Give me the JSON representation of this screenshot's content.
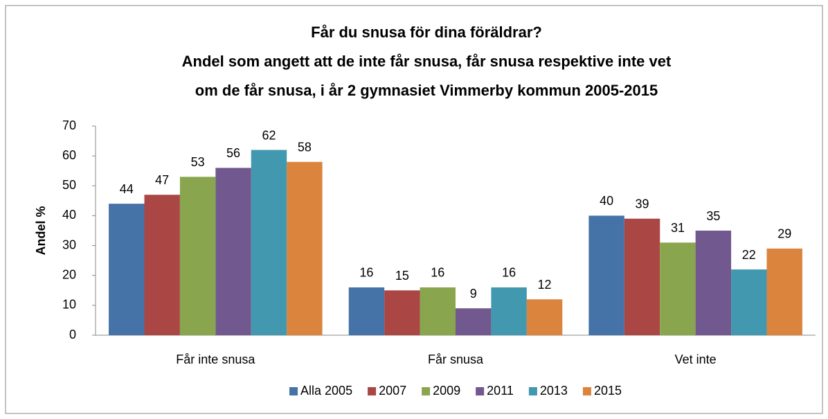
{
  "chart_data": {
    "type": "bar",
    "title": [
      "Får du snusa för dina föräldrar?",
      "Andel som angett att de inte får snusa, får snusa respektive inte vet",
      "om de får snusa, i år 2 gymnasiet Vimmerby kommun 2005-2015"
    ],
    "y_label": "Andel %",
    "categories": [
      "Får inte snusa",
      "Får snusa",
      "Vet inte"
    ],
    "series": [
      {
        "name": "Alla 2005",
        "color": "#4572a7",
        "values": [
          44,
          16,
          40
        ]
      },
      {
        "name": "2007",
        "color": "#aa4643",
        "values": [
          47,
          15,
          39
        ]
      },
      {
        "name": "2009",
        "color": "#89a54e",
        "values": [
          53,
          16,
          31
        ]
      },
      {
        "name": "2011",
        "color": "#71588f",
        "values": [
          56,
          9,
          35
        ]
      },
      {
        "name": "2013",
        "color": "#4198af",
        "values": [
          62,
          16,
          22
        ]
      },
      {
        "name": "2015",
        "color": "#db843d",
        "values": [
          58,
          12,
          29
        ]
      }
    ],
    "ylim": [
      0,
      70
    ],
    "yticks": [
      0,
      10,
      20,
      30,
      40,
      50,
      60,
      70
    ],
    "grid": false,
    "legend": "bottom"
  }
}
